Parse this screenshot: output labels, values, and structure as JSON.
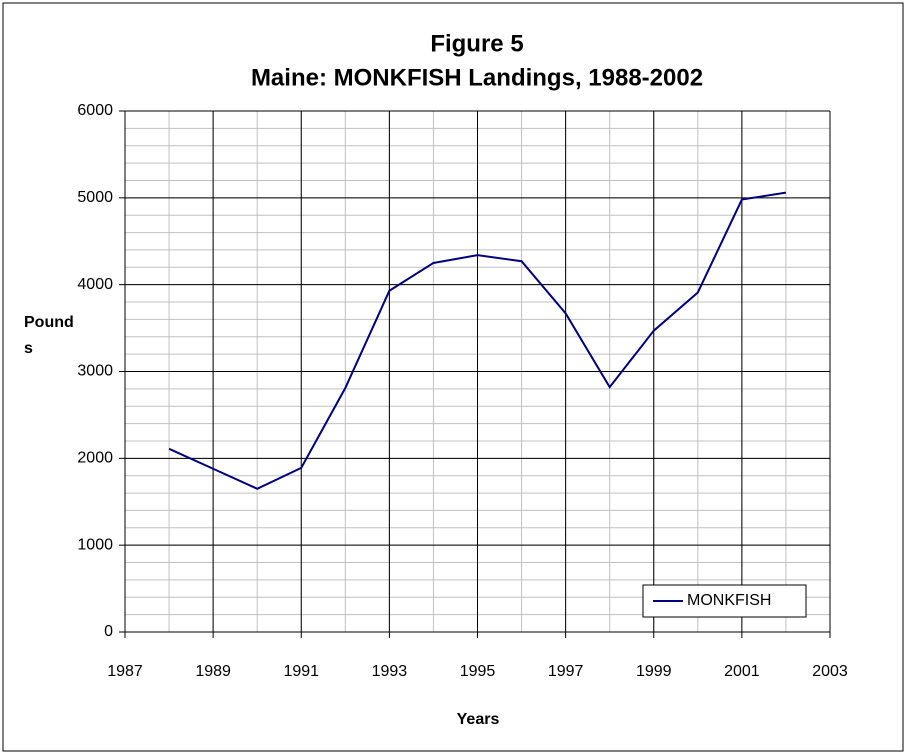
{
  "chart_data": {
    "type": "line",
    "title": "Figure 5",
    "subtitle": "Maine: MONKFISH Landings, 1988-2002",
    "x_label": "Years",
    "y_label": "Pounds",
    "x": [
      1988,
      1989,
      1990,
      1991,
      1992,
      1993,
      1994,
      1995,
      1996,
      1997,
      1998,
      1999,
      2000,
      2001,
      2002
    ],
    "series": [
      {
        "name": "MONKFISH",
        "color": "#000080",
        "values": [
          2110,
          1880,
          1650,
          1890,
          2810,
          3930,
          4250,
          4340,
          4270,
          3670,
          2820,
          3470,
          3910,
          4980,
          5060
        ]
      }
    ],
    "xlim": [
      1987,
      2003
    ],
    "xticks": [
      1987,
      1989,
      1991,
      1993,
      1995,
      1997,
      1999,
      2001,
      2003
    ],
    "ylim": [
      0,
      6000
    ],
    "yticks": [
      0,
      1000,
      2000,
      3000,
      4000,
      5000,
      6000
    ],
    "grid": true,
    "minor_grid": {
      "x": 1,
      "y": 200
    },
    "legend": "lower right"
  }
}
